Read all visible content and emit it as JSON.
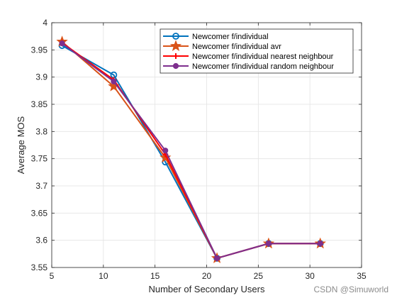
{
  "chart_data": {
    "type": "line",
    "xlabel": "Number of Secondary Users",
    "ylabel": "Average MOS",
    "xlim": [
      5,
      35
    ],
    "ylim": [
      3.55,
      4
    ],
    "xticks": [
      "5",
      "10",
      "15",
      "20",
      "25",
      "30",
      "35"
    ],
    "yticks": [
      "3.55",
      "3.6",
      "3.65",
      "3.7",
      "3.75",
      "3.8",
      "3.85",
      "3.9",
      "3.95",
      "4"
    ],
    "grid": true,
    "legend_position": "top-right",
    "x": [
      6,
      11,
      16,
      21,
      26,
      31
    ],
    "series": [
      {
        "name": "Newcomer f/individual",
        "color": "#0072BD",
        "marker": "circle",
        "values": [
          3.958,
          3.904,
          3.744,
          3.567,
          3.594,
          3.594
        ]
      },
      {
        "name": "Newcomer f/individual avr",
        "color": "#D95319",
        "marker": "star",
        "values": [
          3.965,
          3.883,
          3.752,
          3.567,
          3.594,
          3.594
        ]
      },
      {
        "name": "Newcomer f/individual nearest neighbour",
        "color": "#FF0000",
        "marker": "plus",
        "values": [
          3.963,
          3.895,
          3.758,
          3.567,
          3.594,
          3.594
        ]
      },
      {
        "name": "Newcomer f/individual random neighbour",
        "color": "#7E2F8E",
        "marker": "dot",
        "values": [
          3.962,
          3.892,
          3.765,
          3.567,
          3.594,
          3.594
        ]
      }
    ]
  },
  "watermark": "CSDN @Simuworld"
}
